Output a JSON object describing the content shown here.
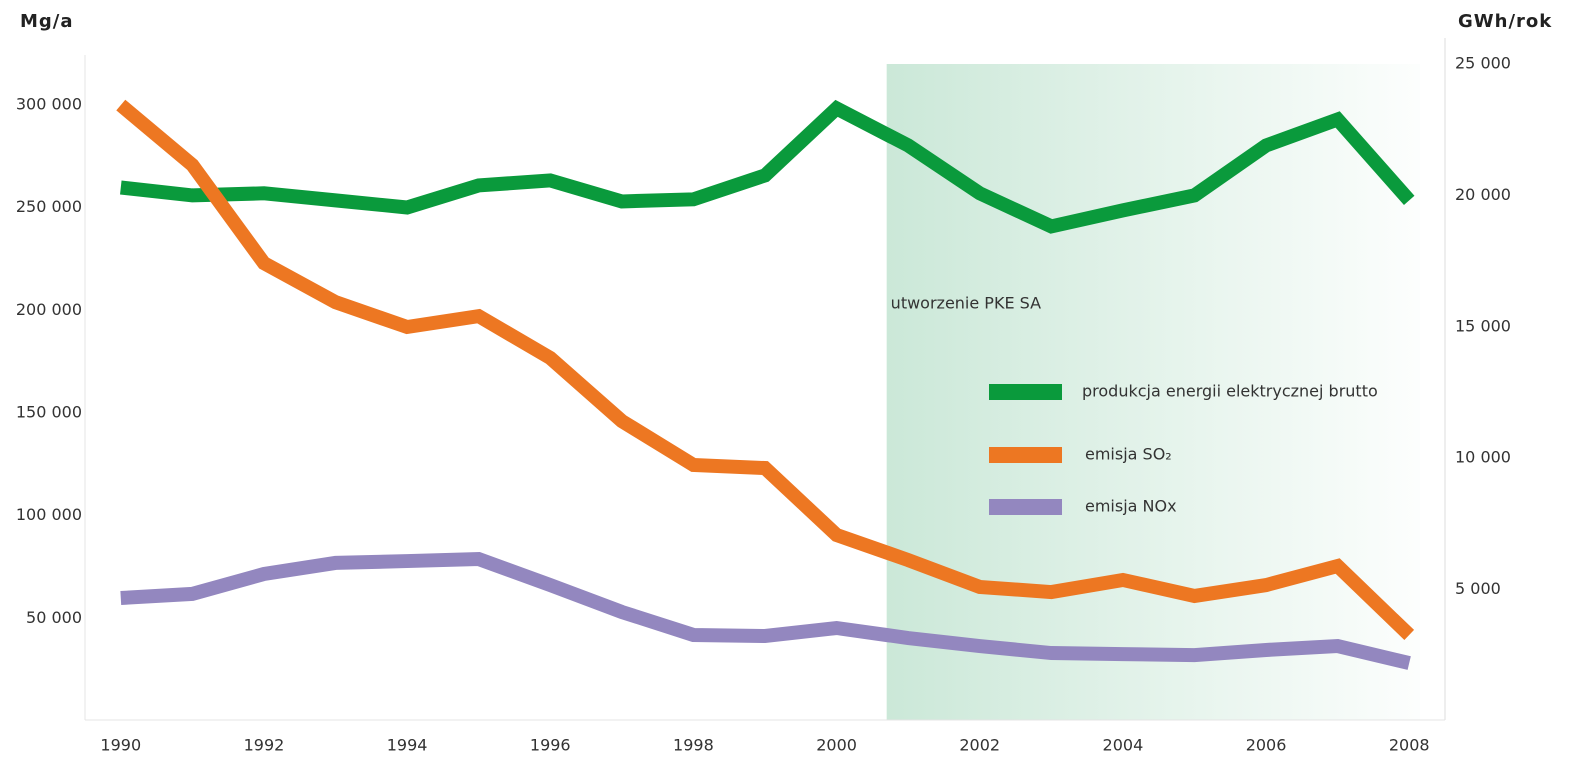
{
  "chart_data": {
    "type": "line",
    "y_label": "Mg/a",
    "y2_label": "GWh/rok",
    "annotation": "utworzenie PKE SA",
    "shaded_from": 2000.7,
    "x": [
      1990,
      1991,
      1992,
      1993,
      1994,
      1995,
      1996,
      1997,
      1998,
      1999,
      2000,
      2001,
      2002,
      2003,
      2004,
      2005,
      2006,
      2007,
      2008
    ],
    "xlim": [
      1989.5,
      2008.5
    ],
    "xticks": [
      1990,
      1992,
      1994,
      1996,
      1998,
      2000,
      2002,
      2004,
      2006,
      2008
    ],
    "ylim": [
      0,
      320000
    ],
    "yticks": [
      {
        "value": 50000,
        "label": "50 000"
      },
      {
        "value": 100000,
        "label": "100 000"
      },
      {
        "value": 150000,
        "label": "150 000"
      },
      {
        "value": 200000,
        "label": "200 000"
      },
      {
        "value": 250000,
        "label": "250 000"
      },
      {
        "value": 300000,
        "label": "300 000"
      }
    ],
    "y2lim": [
      0,
      25000
    ],
    "y2ticks": [
      {
        "value": 5000,
        "label": "5 000"
      },
      {
        "value": 10000,
        "label": "10 000"
      },
      {
        "value": 15000,
        "label": "15 000"
      },
      {
        "value": 20000,
        "label": "20 000"
      },
      {
        "value": 25000,
        "label": "25 000"
      }
    ],
    "series": [
      {
        "name": "produkcja energii elektrycznej brutto",
        "color": "#0a9a3c",
        "axis": "y2",
        "values": [
          20300,
          20000,
          20080,
          19810,
          19540,
          20380,
          20570,
          19770,
          19850,
          20760,
          23310,
          21900,
          20080,
          18820,
          19430,
          20000,
          21900,
          22890,
          19810
        ]
      },
      {
        "name": "emisja SO₂",
        "color": "#ed7722",
        "values": [
          300000,
          270800,
          223000,
          204000,
          191900,
          197200,
          176800,
          146100,
          124700,
          123200,
          90600,
          78400,
          65300,
          62800,
          68700,
          60900,
          66200,
          75500,
          41900
        ]
      },
      {
        "name": "emisja NOx",
        "color": "#9387bf",
        "values": [
          59900,
          61900,
          71600,
          77000,
          77900,
          78900,
          66200,
          53100,
          41900,
          41400,
          45300,
          40400,
          36500,
          33100,
          32600,
          32100,
          34600,
          36500,
          28200
        ]
      }
    ]
  }
}
